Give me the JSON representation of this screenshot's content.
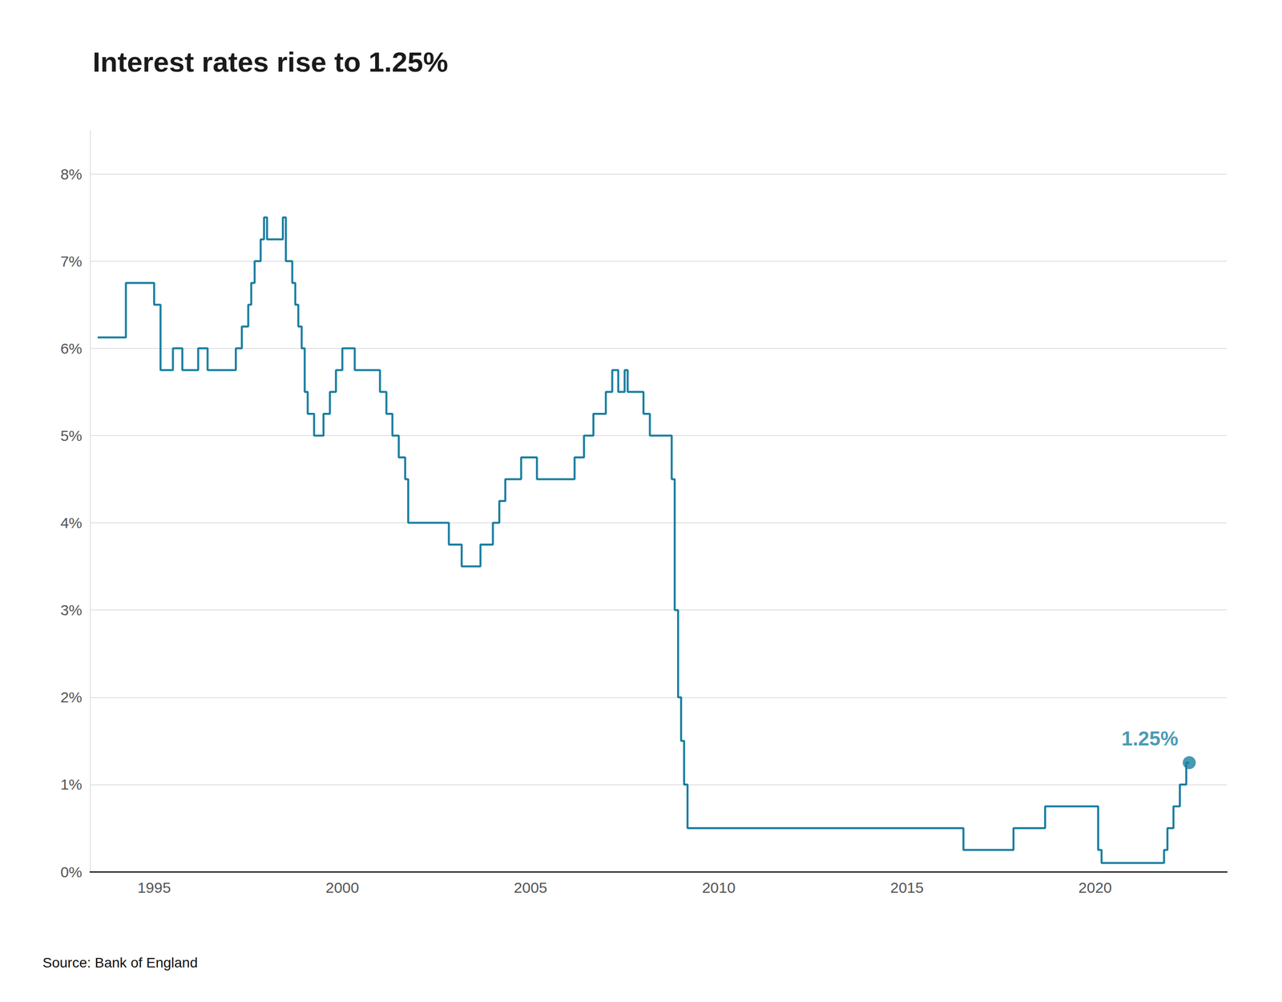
{
  "chart_data": {
    "type": "line",
    "title": "Interest rates rise to 1.25%",
    "source": "Source: Bank of England",
    "color": "#1a7fa0",
    "x": [
      1993.5,
      1994.25,
      1994.25,
      1995.0,
      1995.0,
      1995.17,
      1995.17,
      1995.5,
      1995.5,
      1995.75,
      1995.75,
      1996.17,
      1996.17,
      1996.42,
      1996.42,
      1997.17,
      1997.17,
      1997.33,
      1997.33,
      1997.5,
      1997.5,
      1997.58,
      1997.58,
      1997.67,
      1997.67,
      1997.83,
      1997.83,
      1997.92,
      1997.92,
      1998.0,
      1998.0,
      1998.25,
      1998.42,
      1998.42,
      1998.5,
      1998.5,
      1998.67,
      1998.67,
      1998.75,
      1998.75,
      1998.83,
      1998.83,
      1998.92,
      1998.92,
      1999.0,
      1999.0,
      1999.08,
      1999.08,
      1999.25,
      1999.25,
      1999.5,
      1999.5,
      1999.67,
      1999.67,
      1999.83,
      1999.83,
      2000.0,
      2000.0,
      2000.17,
      2000.33,
      2000.33,
      2001.0,
      2001.0,
      2001.17,
      2001.17,
      2001.33,
      2001.33,
      2001.5,
      2001.5,
      2001.67,
      2001.67,
      2001.75,
      2001.75,
      2002.0,
      2002.83,
      2002.83,
      2003.17,
      2003.17,
      2003.58,
      2003.67,
      2003.67,
      2004.0,
      2004.0,
      2004.17,
      2004.17,
      2004.33,
      2004.33,
      2004.75,
      2004.75,
      2005.0,
      2005.17,
      2005.17,
      2005.67,
      2006.17,
      2006.17,
      2006.42,
      2006.42,
      2006.67,
      2006.67,
      2006.92,
      2007.0,
      2007.0,
      2007.17,
      2007.17,
      2007.33,
      2007.33,
      2007.5,
      2007.5,
      2007.58,
      2007.58,
      2007.75,
      2008.0,
      2008.0,
      2008.17,
      2008.17,
      2008.5,
      2008.75,
      2008.75,
      2008.83,
      2008.83,
      2008.92,
      2008.92,
      2009.0,
      2009.0,
      2009.08,
      2009.08,
      2009.17,
      2009.17,
      2016.5,
      2016.5,
      2017.83,
      2017.83,
      2018.67,
      2018.67,
      2020.08,
      2020.08,
      2020.17,
      2020.17,
      2021.83,
      2021.83,
      2021.92,
      2021.92,
      2022.08,
      2022.08,
      2022.25,
      2022.25,
      2022.42,
      2022.42,
      2022.5
    ],
    "values": [
      6.125,
      6.125,
      6.75,
      6.75,
      6.5,
      6.5,
      5.75,
      5.75,
      6.0,
      6.0,
      5.75,
      5.75,
      6.0,
      6.0,
      5.75,
      5.75,
      6.0,
      6.0,
      6.25,
      6.25,
      6.5,
      6.5,
      6.75,
      6.75,
      7.0,
      7.0,
      7.25,
      7.25,
      7.5,
      7.5,
      7.25,
      7.25,
      7.25,
      7.5,
      7.5,
      7.0,
      7.0,
      6.75,
      6.75,
      6.5,
      6.5,
      6.25,
      6.25,
      6.0,
      6.0,
      5.5,
      5.5,
      5.25,
      5.25,
      5.0,
      5.0,
      5.25,
      5.25,
      5.5,
      5.5,
      5.75,
      5.75,
      6.0,
      6.0,
      6.0,
      5.75,
      5.75,
      5.5,
      5.5,
      5.25,
      5.25,
      5.0,
      5.0,
      4.75,
      4.75,
      4.5,
      4.5,
      4.0,
      4.0,
      4.0,
      3.75,
      3.75,
      3.5,
      3.5,
      3.5,
      3.75,
      3.75,
      4.0,
      4.0,
      4.25,
      4.25,
      4.5,
      4.5,
      4.75,
      4.75,
      4.75,
      4.5,
      4.5,
      4.5,
      4.75,
      4.75,
      5.0,
      5.0,
      5.25,
      5.25,
      5.25,
      5.5,
      5.5,
      5.75,
      5.75,
      5.5,
      5.5,
      5.75,
      5.75,
      5.5,
      5.5,
      5.5,
      5.25,
      5.25,
      5.0,
      5.0,
      5.0,
      4.5,
      4.5,
      3.0,
      3.0,
      2.0,
      2.0,
      1.5,
      1.5,
      1.0,
      1.0,
      0.5,
      0.5,
      0.25,
      0.25,
      0.5,
      0.5,
      0.75,
      0.75,
      0.25,
      0.25,
      0.1,
      0.1,
      0.25,
      0.25,
      0.5,
      0.5,
      0.75,
      0.75,
      1.0,
      1.0,
      1.25,
      1.25
    ],
    "annotations": [
      {
        "text": "1.25%",
        "x": 2022.5,
        "y": 1.25,
        "color": "#1a7fa0"
      }
    ],
    "xlim": [
      1993.3,
      2023.5
    ],
    "xticks": [
      1995,
      2000,
      2005,
      2010,
      2015,
      2020
    ],
    "ylim": [
      0,
      8.5
    ],
    "yticks": [
      {
        "value": 0,
        "label": "0%"
      },
      {
        "value": 1,
        "label": "1%"
      },
      {
        "value": 2,
        "label": "2%"
      },
      {
        "value": 3,
        "label": "3%"
      },
      {
        "value": 4,
        "label": "4%"
      },
      {
        "value": 5,
        "label": "5%"
      },
      {
        "value": 6,
        "label": "6%"
      },
      {
        "value": 7,
        "label": "7%"
      },
      {
        "value": 8,
        "label": "8%"
      }
    ],
    "grid": true
  }
}
